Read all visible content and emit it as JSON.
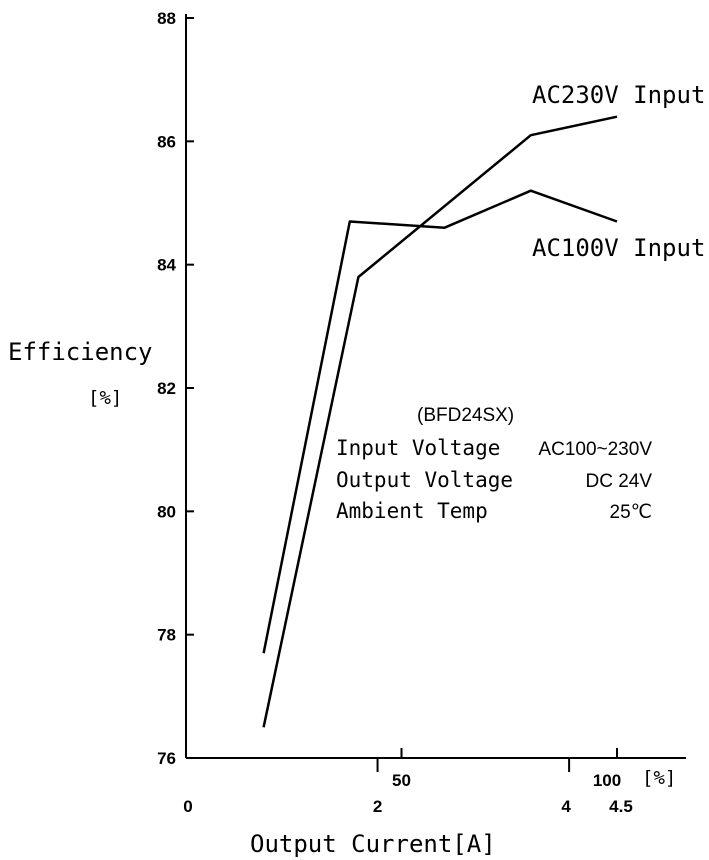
{
  "chart_data": {
    "type": "line",
    "ylabel": "Efficiency",
    "ylabel_unit": "[%]",
    "xlabel": "Output Current[A]",
    "ylim": [
      76,
      88
    ],
    "yticks": [
      "76",
      "78",
      "80",
      "82",
      "84",
      "86",
      "88"
    ],
    "x_percent_axis": {
      "range": [
        0,
        100
      ],
      "ticks": [
        {
          "value": 50,
          "label": "50"
        },
        {
          "value": 100,
          "label": "100"
        }
      ],
      "unit_label": "[%]"
    },
    "x_current_axis": {
      "ticks": [
        {
          "value": 0,
          "label": "0"
        },
        {
          "value": 2,
          "label": "2"
        },
        {
          "value": 4,
          "label": "4"
        },
        {
          "value": 4.5,
          "label": "4.5"
        }
      ]
    },
    "series": [
      {
        "name": "AC230V Input",
        "x": [
          18,
          40,
          80,
          100
        ],
        "y": [
          76.5,
          83.8,
          86.1,
          86.4
        ]
      },
      {
        "name": "AC100V Input",
        "x": [
          18,
          38,
          60,
          80,
          100
        ],
        "y": [
          77.7,
          84.7,
          84.6,
          85.2,
          84.7
        ]
      }
    ],
    "annotation": {
      "model": "(BFD24SX)",
      "rows": [
        {
          "label": "Input Voltage",
          "value": "AC100~230V"
        },
        {
          "label": "Output Voltage",
          "value": "DC 24V"
        },
        {
          "label": "Ambient Temp",
          "value": "25℃"
        }
      ]
    },
    "grid": false,
    "legend": "inline labels"
  }
}
